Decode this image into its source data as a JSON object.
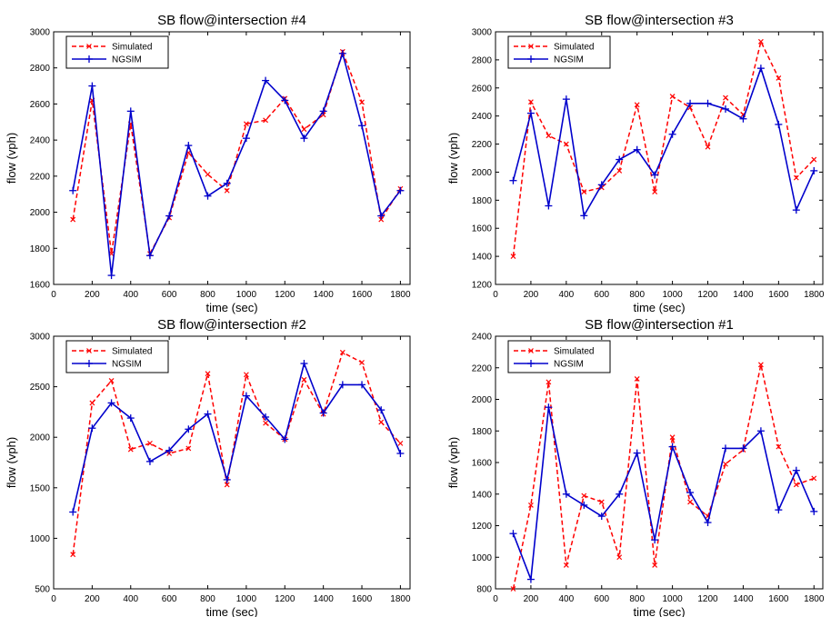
{
  "colors": {
    "simulated": "#ff0000",
    "ngsim": "#0000cc",
    "axes": "#000000"
  },
  "chart_data": [
    {
      "type": "line",
      "title": "SB flow@intersection #4",
      "xlabel": "time (sec)",
      "ylabel": "flow (vph)",
      "xlim": [
        0,
        1850
      ],
      "ylim": [
        1600,
        3000
      ],
      "xticks": [
        0,
        200,
        400,
        600,
        800,
        1000,
        1200,
        1400,
        1600,
        1800
      ],
      "yticks": [
        1600,
        1800,
        2000,
        2200,
        2400,
        2600,
        2800,
        3000
      ],
      "legend_position": "top-left",
      "x": [
        100,
        200,
        300,
        400,
        500,
        600,
        700,
        800,
        900,
        1000,
        1100,
        1200,
        1300,
        1400,
        1500,
        1600,
        1700,
        1800
      ],
      "series": [
        {
          "name": "Simulated",
          "style": "dashed-x",
          "values": [
            1960,
            2620,
            1770,
            2490,
            1770,
            1970,
            2330,
            2210,
            2120,
            2490,
            2510,
            2630,
            2460,
            2540,
            2890,
            2610,
            1960,
            2130
          ]
        },
        {
          "name": "NGSIM",
          "style": "solid-plus",
          "values": [
            2120,
            2700,
            1650,
            2560,
            1760,
            1980,
            2370,
            2090,
            2160,
            2410,
            2730,
            2620,
            2410,
            2560,
            2880,
            2480,
            1980,
            2120
          ]
        }
      ]
    },
    {
      "type": "line",
      "title": "SB flow@intersection #3",
      "xlabel": "time (sec)",
      "ylabel": "flow (vph)",
      "xlim": [
        0,
        1850
      ],
      "ylim": [
        1200,
        3000
      ],
      "xticks": [
        0,
        200,
        400,
        600,
        800,
        1000,
        1200,
        1400,
        1600,
        1800
      ],
      "yticks": [
        1200,
        1400,
        1600,
        1800,
        2000,
        2200,
        2400,
        2600,
        2800,
        3000
      ],
      "legend_position": "top-left",
      "x": [
        100,
        200,
        300,
        400,
        500,
        600,
        700,
        800,
        900,
        1000,
        1100,
        1200,
        1300,
        1400,
        1500,
        1600,
        1700,
        1800
      ],
      "series": [
        {
          "name": "Simulated",
          "style": "dashed-x",
          "values": [
            1400,
            2500,
            2260,
            2200,
            1860,
            1890,
            2010,
            2480,
            1860,
            2540,
            2460,
            2180,
            2530,
            2410,
            2930,
            2670,
            1960,
            2090
          ]
        },
        {
          "name": "NGSIM",
          "style": "solid-plus",
          "values": [
            1940,
            2420,
            1760,
            2520,
            1690,
            1910,
            2090,
            2160,
            1980,
            2270,
            2490,
            2490,
            2450,
            2380,
            2740,
            2340,
            1730,
            2010
          ]
        }
      ]
    },
    {
      "type": "line",
      "title": "SB flow@intersection #2",
      "xlabel": "time (sec)",
      "ylabel": "flow (vph)",
      "xlim": [
        0,
        1850
      ],
      "ylim": [
        500,
        3000
      ],
      "xticks": [
        0,
        200,
        400,
        600,
        800,
        1000,
        1200,
        1400,
        1600,
        1800
      ],
      "yticks": [
        500,
        1000,
        1500,
        2000,
        2500,
        3000
      ],
      "legend_position": "top-left",
      "x": [
        100,
        200,
        300,
        400,
        500,
        600,
        700,
        800,
        900,
        1000,
        1100,
        1200,
        1300,
        1400,
        1500,
        1600,
        1700,
        1800
      ],
      "series": [
        {
          "name": "Simulated",
          "style": "dashed-x",
          "values": [
            840,
            2340,
            2560,
            1880,
            1940,
            1840,
            1890,
            2630,
            1530,
            2620,
            2140,
            1980,
            2570,
            2230,
            2840,
            2740,
            2150,
            1940
          ]
        },
        {
          "name": "NGSIM",
          "style": "solid-plus",
          "values": [
            1260,
            2090,
            2340,
            2190,
            1760,
            1870,
            2080,
            2230,
            1580,
            2410,
            2200,
            1980,
            2730,
            2240,
            2520,
            2520,
            2270,
            1840
          ]
        }
      ]
    },
    {
      "type": "line",
      "title": "SB flow@intersection #1",
      "xlabel": "time (sec)",
      "ylabel": "flow (vph)",
      "xlim": [
        0,
        1850
      ],
      "ylim": [
        800,
        2400
      ],
      "xticks": [
        0,
        200,
        400,
        600,
        800,
        1000,
        1200,
        1400,
        1600,
        1800
      ],
      "yticks": [
        800,
        1000,
        1200,
        1400,
        1600,
        1800,
        2000,
        2200,
        2400
      ],
      "legend_position": "top-left",
      "x": [
        100,
        200,
        300,
        400,
        500,
        600,
        700,
        800,
        900,
        1000,
        1100,
        1200,
        1300,
        1400,
        1500,
        1600,
        1700,
        1800
      ],
      "series": [
        {
          "name": "Simulated",
          "style": "dashed-x",
          "values": [
            800,
            1330,
            2110,
            950,
            1390,
            1350,
            1000,
            2130,
            950,
            1760,
            1350,
            1260,
            1590,
            1680,
            2220,
            1700,
            1460,
            1500
          ]
        },
        {
          "name": "NGSIM",
          "style": "solid-plus",
          "values": [
            1150,
            860,
            1950,
            1400,
            1330,
            1260,
            1400,
            1660,
            1110,
            1700,
            1410,
            1220,
            1690,
            1690,
            1800,
            1300,
            1550,
            1290
          ]
        }
      ]
    }
  ]
}
